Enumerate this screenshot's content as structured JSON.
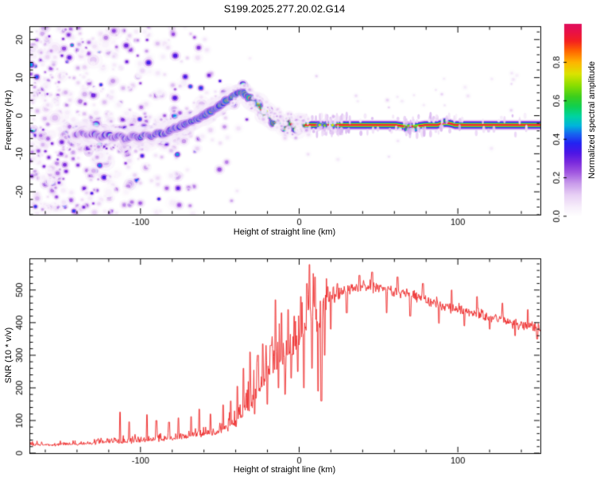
{
  "title": "S199.2025.277.20.02.G14",
  "colors": {
    "background": "#ffffff",
    "axis": "#000000",
    "snr_line": "#ee3333"
  },
  "colormap": [
    [
      0.0,
      "#ffffff"
    ],
    [
      0.05,
      "#f7eefb"
    ],
    [
      0.11,
      "#e8d0f5"
    ],
    [
      0.17,
      "#c99ceb"
    ],
    [
      0.23,
      "#a055e0"
    ],
    [
      0.28,
      "#7a2add"
    ],
    [
      0.33,
      "#4c15e6"
    ],
    [
      0.38,
      "#2323f2"
    ],
    [
      0.43,
      "#1668ef"
    ],
    [
      0.47,
      "#00b4dc"
    ],
    [
      0.52,
      "#00d4a0"
    ],
    [
      0.57,
      "#10d050"
    ],
    [
      0.62,
      "#3ace1e"
    ],
    [
      0.68,
      "#8ade00"
    ],
    [
      0.74,
      "#dce300"
    ],
    [
      0.8,
      "#ffb400"
    ],
    [
      0.86,
      "#ff6400"
    ],
    [
      0.91,
      "#f42020"
    ],
    [
      0.96,
      "#e81048"
    ],
    [
      1.0,
      "#e00f5e"
    ]
  ],
  "chart_data": [
    {
      "type": "heatmap",
      "title": "S199.2025.277.20.02.G14",
      "xlabel": "Height of straight line (km)",
      "ylabel": "Frequency (Hz)",
      "xlim": [
        -170,
        152
      ],
      "ylim": [
        -26,
        23.5
      ],
      "xticks": [
        [
          -100,
          "-100"
        ],
        [
          0,
          "0"
        ],
        [
          100,
          "100"
        ]
      ],
      "xtick_minor_step": 20,
      "yticks": [
        [
          -20,
          "-20"
        ],
        [
          -10,
          "-10"
        ],
        [
          0,
          "0"
        ],
        [
          10,
          "10"
        ],
        [
          20,
          "20"
        ]
      ],
      "ytick_minor_step": 2,
      "grid": false,
      "colorbar": {
        "label": "Normalized spectral amplitude",
        "range": [
          0,
          1
        ],
        "ticks": [
          [
            0,
            "0.0"
          ],
          [
            0.2,
            "0.2"
          ],
          [
            0.4,
            "0.4"
          ],
          [
            0.6,
            "0.6"
          ],
          [
            0.8,
            "0.8"
          ]
        ]
      },
      "signal_track": {
        "points": [
          [
            -141,
            -5.2,
            0.35
          ],
          [
            -137,
            -4.4,
            0.4
          ],
          [
            -133,
            -5.4,
            0.42
          ],
          [
            -129,
            -4.6,
            0.45
          ],
          [
            -125,
            -5.8,
            0.42
          ],
          [
            -121,
            -4.8,
            0.48
          ],
          [
            -117,
            -5.9,
            0.45
          ],
          [
            -113,
            -5.0,
            0.5
          ],
          [
            -109,
            -6.2,
            0.45
          ],
          [
            -105,
            -5.2,
            0.5
          ],
          [
            -101,
            -5.9,
            0.48
          ],
          [
            -97,
            -4.9,
            0.52
          ],
          [
            -93,
            -5.6,
            0.5
          ],
          [
            -89,
            -4.4,
            0.55
          ],
          [
            -85,
            -5.0,
            0.52
          ],
          [
            -81,
            -3.8,
            0.55
          ],
          [
            -77,
            -3.2,
            0.55
          ],
          [
            -73,
            -2.4,
            0.58
          ],
          [
            -69,
            -1.7,
            0.6
          ],
          [
            -65,
            -1.0,
            0.6
          ],
          [
            -61,
            -0.2,
            0.62
          ],
          [
            -57,
            0.8,
            0.65
          ],
          [
            -53,
            1.9,
            0.65
          ],
          [
            -49,
            3.0,
            0.68
          ],
          [
            -45,
            4.2,
            0.7
          ],
          [
            -41,
            5.3,
            0.72
          ],
          [
            -38,
            6.1,
            0.75
          ],
          [
            -35,
            5.9,
            0.78
          ],
          [
            -32,
            4.9,
            0.78
          ],
          [
            -29,
            3.7,
            0.82
          ],
          [
            -26,
            2.5,
            0.82
          ],
          [
            -23,
            1.4,
            0.85
          ],
          [
            -20,
            0.4,
            0.86
          ],
          [
            -17,
            -0.6,
            0.88
          ],
          [
            -14,
            -1.4,
            0.9
          ],
          [
            -11,
            -2.0,
            0.9
          ],
          [
            -8,
            -2.5,
            0.92
          ],
          [
            -5,
            -2.7,
            0.92
          ],
          [
            -2,
            -2.5,
            0.94
          ],
          [
            1,
            -2.5,
            0.95
          ],
          [
            4,
            -2.45,
            0.96
          ]
        ],
        "wiggle": {
          "amp_hz": 1.15,
          "period_km": 6.8,
          "from_km": -28,
          "to_km": 3
        },
        "carrier": {
          "freq_hz": -2.45,
          "start_km": 4,
          "end_km": 152,
          "peak_amplitude": 0.985,
          "layers": [
            [
              0.09,
              6.6
            ],
            [
              0.2,
              5.2
            ],
            [
              0.31,
              4.2
            ],
            [
              0.43,
              3.3
            ],
            [
              0.55,
              2.55
            ],
            [
              0.68,
              1.95
            ],
            [
              0.8,
              1.4
            ],
            [
              0.91,
              0.95
            ],
            [
              0.985,
              0.55
            ]
          ],
          "gaps_km": [
            [
              66,
              69.5
            ],
            [
              72,
              75
            ]
          ],
          "wobble": [
            [
              61,
              79,
              2.0
            ],
            [
              87,
              98,
              -2.4
            ]
          ],
          "extra_blobs": [
            [
              67.5,
              4,
              0.55,
              2.2
            ],
            [
              70,
              3.2,
              0.6,
              2.0
            ],
            [
              73.5,
              4.5,
              0.5,
              1.9
            ],
            [
              92,
              -3,
              0.6,
              2.4
            ],
            [
              13,
              0,
              0.72,
              2.6
            ],
            [
              16,
              0.5,
              0.68,
              2.3
            ],
            [
              21,
              0,
              0.75,
              2.4
            ],
            [
              67.5,
              1,
              0.92,
              1.2
            ],
            [
              73.2,
              1.3,
              0.9,
              1.1
            ]
          ]
        },
        "noise": {
          "extent_km": [
            -170,
            -29
          ],
          "count": 1500,
          "density_profile": [
            [
              -170,
              0.9
            ],
            [
              -152,
              0.85
            ],
            [
              -140,
              0.78
            ],
            [
              -128,
              0.95
            ],
            [
              -118,
              0.88
            ],
            [
              -106,
              0.75
            ],
            [
              -95,
              0.6
            ],
            [
              -84,
              0.5
            ],
            [
              -72,
              0.42
            ],
            [
              -60,
              0.3
            ],
            [
              -50,
              0.2
            ],
            [
              -43,
              0.12
            ],
            [
              -36,
              0.06
            ],
            [
              -29,
              0.03
            ]
          ]
        }
      }
    },
    {
      "type": "line",
      "xlabel": "Height of straight line (km)",
      "ylabel": "SNR (10 * v/v)",
      "xlim": [
        -170,
        152
      ],
      "ylim": [
        0,
        597
      ],
      "xticks": [
        [
          -100,
          "-100"
        ],
        [
          0,
          "0"
        ],
        [
          100,
          "100"
        ]
      ],
      "xtick_minor_step": 20,
      "yticks": [
        [
          0,
          "0"
        ],
        [
          100,
          "100"
        ],
        [
          200,
          "200"
        ],
        [
          300,
          "300"
        ],
        [
          400,
          "400"
        ],
        [
          500,
          "500"
        ]
      ],
      "ytick_minor_step": 20,
      "grid": false,
      "envelope": [
        [
          -170,
          26
        ],
        [
          -160,
          25
        ],
        [
          -150,
          27
        ],
        [
          -140,
          28
        ],
        [
          -130,
          30
        ],
        [
          -120,
          33
        ],
        [
          -110,
          36
        ],
        [
          -100,
          38
        ],
        [
          -92,
          42
        ],
        [
          -85,
          44
        ],
        [
          -78,
          48
        ],
        [
          -72,
          50
        ],
        [
          -66,
          54
        ],
        [
          -60,
          60
        ],
        [
          -55,
          64
        ],
        [
          -50,
          72
        ],
        [
          -46,
          80
        ],
        [
          -42,
          92
        ],
        [
          -38,
          110
        ],
        [
          -34,
          135
        ],
        [
          -30,
          165
        ],
        [
          -27,
          185
        ],
        [
          -24,
          210
        ],
        [
          -21,
          235
        ],
        [
          -18,
          255
        ],
        [
          -15,
          275
        ],
        [
          -12,
          295
        ],
        [
          -9,
          305
        ],
        [
          -6,
          315
        ],
        [
          -3,
          330
        ],
        [
          0,
          350
        ],
        [
          3,
          390
        ],
        [
          6,
          430
        ],
        [
          9,
          440
        ],
        [
          12,
          400
        ],
        [
          15,
          430
        ],
        [
          18,
          460
        ],
        [
          21,
          475
        ],
        [
          24,
          485
        ],
        [
          28,
          495
        ],
        [
          32,
          500
        ],
        [
          36,
          505
        ],
        [
          40,
          508
        ],
        [
          45,
          510
        ],
        [
          50,
          508
        ],
        [
          55,
          503
        ],
        [
          60,
          498
        ],
        [
          65,
          492
        ],
        [
          70,
          487
        ],
        [
          75,
          478
        ],
        [
          80,
          470
        ],
        [
          85,
          462
        ],
        [
          90,
          452
        ],
        [
          95,
          447
        ],
        [
          100,
          442
        ],
        [
          105,
          436
        ],
        [
          110,
          430
        ],
        [
          115,
          424
        ],
        [
          120,
          417
        ],
        [
          125,
          411
        ],
        [
          130,
          405
        ],
        [
          135,
          399
        ],
        [
          140,
          394
        ],
        [
          145,
          390
        ],
        [
          150,
          387
        ],
        [
          152,
          386
        ]
      ],
      "noise_sigma": [
        [
          -170,
          7
        ],
        [
          -150,
          8
        ],
        [
          -130,
          9
        ],
        [
          -115,
          12
        ],
        [
          -100,
          13
        ],
        [
          -88,
          14
        ],
        [
          -75,
          15
        ],
        [
          -65,
          17
        ],
        [
          -55,
          20
        ],
        [
          -48,
          26
        ],
        [
          -42,
          34
        ],
        [
          -36,
          45
        ],
        [
          -30,
          55
        ],
        [
          -25,
          62
        ],
        [
          -20,
          70
        ],
        [
          -15,
          78
        ],
        [
          -10,
          82
        ],
        [
          -5,
          85
        ],
        [
          0,
          88
        ],
        [
          4,
          90
        ],
        [
          8,
          85
        ],
        [
          12,
          75
        ],
        [
          16,
          60
        ],
        [
          20,
          42
        ],
        [
          25,
          30
        ],
        [
          32,
          24
        ],
        [
          40,
          20
        ],
        [
          50,
          20
        ],
        [
          60,
          22
        ],
        [
          70,
          23
        ],
        [
          80,
          24
        ],
        [
          90,
          24
        ],
        [
          100,
          23
        ],
        [
          110,
          22
        ],
        [
          120,
          22
        ],
        [
          130,
          21
        ],
        [
          140,
          21
        ],
        [
          152,
          20
        ]
      ],
      "spikes": [
        [
          -113,
          126
        ],
        [
          -107,
          96
        ],
        [
          -96,
          118
        ],
        [
          -90,
          100
        ],
        [
          -82,
          95
        ],
        [
          -76,
          108
        ],
        [
          -68,
          112
        ],
        [
          -63,
          135
        ],
        [
          -56,
          120
        ],
        [
          -48,
          148
        ],
        [
          -43,
          160
        ],
        [
          -39,
          205
        ],
        [
          -35,
          260
        ],
        [
          -31,
          310
        ],
        [
          -28,
          120
        ],
        [
          -26,
          300
        ],
        [
          -23,
          335
        ],
        [
          -20,
          150
        ],
        [
          -18,
          330
        ],
        [
          -15,
          470
        ],
        [
          -13,
          200
        ],
        [
          -11,
          430
        ],
        [
          -9,
          180
        ],
        [
          -7,
          440
        ],
        [
          -5,
          230
        ],
        [
          -3,
          420
        ],
        [
          -1,
          250
        ],
        [
          1,
          480
        ],
        [
          3,
          200
        ],
        [
          5,
          520
        ],
        [
          6.5,
          578
        ],
        [
          8,
          260
        ],
        [
          10,
          540
        ],
        [
          12,
          190
        ],
        [
          14,
          160
        ],
        [
          16,
          300
        ],
        [
          18,
          510
        ],
        [
          20,
          380
        ],
        [
          24,
          520
        ],
        [
          30,
          430
        ],
        [
          38,
          545
        ],
        [
          46,
          555
        ],
        [
          55,
          430
        ],
        [
          62,
          540
        ],
        [
          70,
          420
        ],
        [
          78,
          520
        ],
        [
          88,
          398
        ],
        [
          96,
          500
        ],
        [
          104,
          390
        ],
        [
          112,
          480
        ],
        [
          120,
          380
        ],
        [
          128,
          460
        ],
        [
          136,
          360
        ],
        [
          144,
          440
        ],
        [
          150,
          350
        ]
      ]
    }
  ]
}
